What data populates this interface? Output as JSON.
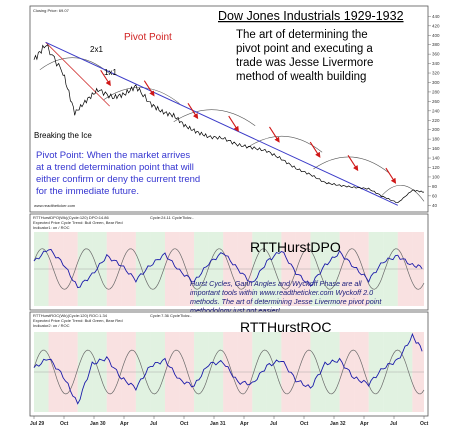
{
  "header": {
    "closing_price": "Closing Price: 69.07",
    "title": "Dow Jones Industrials 1929-1932",
    "source": "www.readtheticker.com"
  },
  "annotations": {
    "thesis": [
      "The art of determining the",
      "pivot point and executing a",
      "trade was Jesse Livermore",
      "method of wealth building"
    ],
    "pivot_point_label": "Pivot Point",
    "gann_2x1": "2x1",
    "gann_1x1": "1x1",
    "breaking_ice": "Breaking the Ice",
    "pivot_definition": [
      "Pivot Point: When the market arrives",
      "at a trend determination point that will",
      "either confirm or deny the current trend",
      "for the immediate future."
    ],
    "tools_note": [
      "Hurst Cycles, Gann Angles and Wyckoff Phase are all",
      "important tools within www.readtheticker.com Wyckoff 2.0",
      "methods. The art of determining Jesse Livermore pivot point",
      "methodology just got easier!"
    ]
  },
  "panels": {
    "dpo": {
      "title": "RTTHurstDPO",
      "legend_line": "RTTHurstDPO(Wk)(Cycle:120) DPO:14.86",
      "legend_cycle": "Cycle:24.11  CycleTicks:-",
      "legend_sub": "Expected Price Cycle Trend: Bull Green, Bear Red",
      "legend_sub2": "Indicator1: on / ROC"
    },
    "roc": {
      "title": "RTTHurstROC",
      "legend_line": "RTTHurstROC(Wk)(Cycle:120) ROC:1.34",
      "legend_cycle": "Cycle:7.36  CycleTicks:-",
      "legend_sub": "Expected Price Cycle Trend: Bull Green, Bear Red",
      "legend_sub2": "Indicator2: on / ROC"
    }
  },
  "colors": {
    "price": "#000000",
    "trendline": "#3a3ac8",
    "gann_line": "#d03030",
    "arrow": "#d01818",
    "indicator": "#1c1caa",
    "indicator_bear": "#c0302a",
    "cycle": "#6a6a6a",
    "bull_zone": "#c8e8c8",
    "bear_zone": "#f4c8c8"
  },
  "chart_data": [
    {
      "type": "line",
      "name": "price",
      "y_axis_ticks": [
        440,
        420,
        400,
        380,
        360,
        340,
        320,
        300,
        280,
        260,
        240,
        220,
        200,
        180,
        160,
        140,
        120,
        100,
        80,
        60,
        40
      ],
      "ylim": [
        30,
        445
      ],
      "x_ticks": [
        "Jul 29",
        "Oct",
        "Jan 30",
        "Apr",
        "Jul",
        "Oct",
        "Jan 31",
        "Apr",
        "Jul",
        "Oct",
        "Jan 32",
        "Apr",
        "Jul",
        "Oct"
      ],
      "x": [
        0,
        0.4,
        1,
        1.4,
        1.8,
        2.2,
        2.7,
        3.1,
        3.5,
        4,
        4.4,
        4.8,
        5.2,
        5.6,
        6,
        6.5,
        7,
        7.5,
        8,
        8.5,
        9,
        9.5,
        10,
        10.5,
        11,
        11.5,
        12,
        12.5,
        13,
        13.4
      ],
      "values": [
        348,
        380,
        320,
        235,
        262,
        285,
        268,
        275,
        292,
        255,
        238,
        230,
        208,
        195,
        185,
        182,
        168,
        162,
        155,
        138,
        118,
        105,
        88,
        82,
        78,
        75,
        58,
        45,
        72,
        68
      ]
    },
    {
      "type": "line",
      "name": "RTTHurstDPO",
      "ylim": [
        -1,
        1
      ],
      "x": [
        0,
        0.5,
        1,
        1.5,
        2,
        2.5,
        3,
        3.5,
        4,
        4.5,
        5,
        5.5,
        6,
        6.5,
        7,
        7.5,
        8,
        8.5,
        9,
        9.5,
        10,
        10.5,
        11,
        11.5,
        12,
        12.5,
        13,
        13.4
      ],
      "values": [
        0.2,
        0.55,
        0.15,
        -0.5,
        -0.15,
        0.35,
        0.1,
        -0.3,
        0.1,
        0.4,
        -0.05,
        -0.35,
        0.15,
        0.45,
        0.0,
        -0.4,
        0.2,
        0.5,
        -0.1,
        -0.45,
        0.1,
        0.45,
        0.05,
        -0.3,
        0.2,
        0.35,
        0.1,
        0.05
      ]
    },
    {
      "type": "line",
      "name": "RTTHurstROC",
      "ylim": [
        -1,
        1
      ],
      "x": [
        0,
        0.5,
        1,
        1.5,
        2,
        2.5,
        3,
        3.5,
        4,
        4.5,
        5,
        5.5,
        6,
        6.5,
        7,
        7.5,
        8,
        8.5,
        9,
        9.5,
        10,
        10.5,
        11,
        11.5,
        12,
        12.5,
        13,
        13.4
      ],
      "values": [
        0.1,
        0.35,
        -0.1,
        -0.8,
        0.2,
        0.35,
        -0.15,
        -0.4,
        0.15,
        0.3,
        -0.2,
        -0.35,
        0.2,
        0.25,
        -0.25,
        -0.3,
        0.15,
        0.3,
        -0.2,
        -0.4,
        0.2,
        0.3,
        -0.15,
        -0.3,
        0.1,
        0.3,
        0.9,
        0.5
      ]
    }
  ]
}
